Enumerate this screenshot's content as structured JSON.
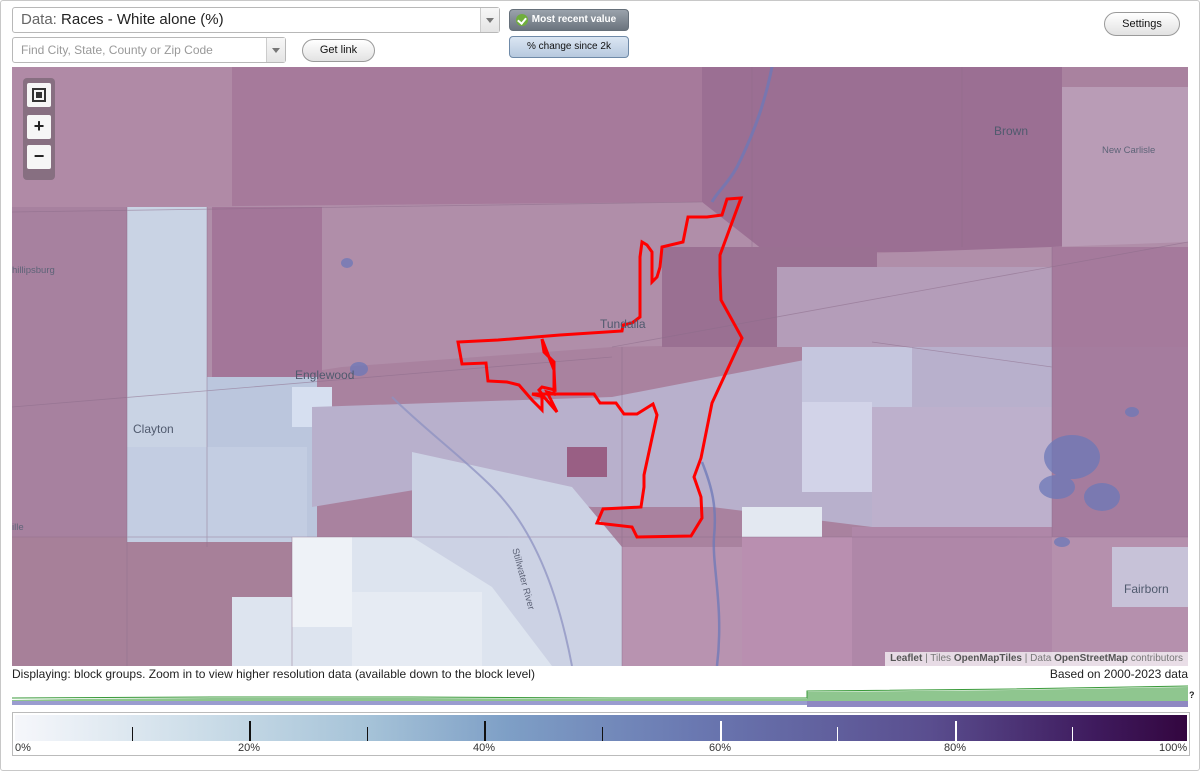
{
  "header": {
    "data_prefix": "Data:",
    "data_value": "Races - White alone (%)",
    "search_placeholder": "Find City, State, County or Zip Code",
    "get_link_label": "Get link",
    "settings_label": "Settings",
    "toggle_recent_label": "Most recent value",
    "toggle_change_label": "% change since 2k"
  },
  "map": {
    "places": {
      "brown": "Brown",
      "new_carlisle": "New Carlisle",
      "phillipsburg": "hillipsburg",
      "tundalla": "Tundalla",
      "englewood": "Englewood",
      "clayton": "Clayton",
      "fairborn": "Fairborn",
      "river": "Stillwater River",
      "ille": "ille"
    },
    "attribution": {
      "leaflet": "Leaflet",
      "sep1": " | Tiles ",
      "tiles": "OpenMapTiles",
      "sep2": " | Data ",
      "data": "OpenStreetMap",
      "tail": " contributors"
    },
    "colors": {
      "outline": "#ff0000",
      "water": "#6c78b8"
    }
  },
  "footer": {
    "displaying": "Displaying: block groups. Zoom in to view higher resolution data (available down to the block level)",
    "based_on": "Based on 2000-2023 data",
    "help_mark": "?"
  },
  "legend": {
    "labels": [
      "0%",
      "20%",
      "40%",
      "60%",
      "80%",
      "100%"
    ]
  }
}
